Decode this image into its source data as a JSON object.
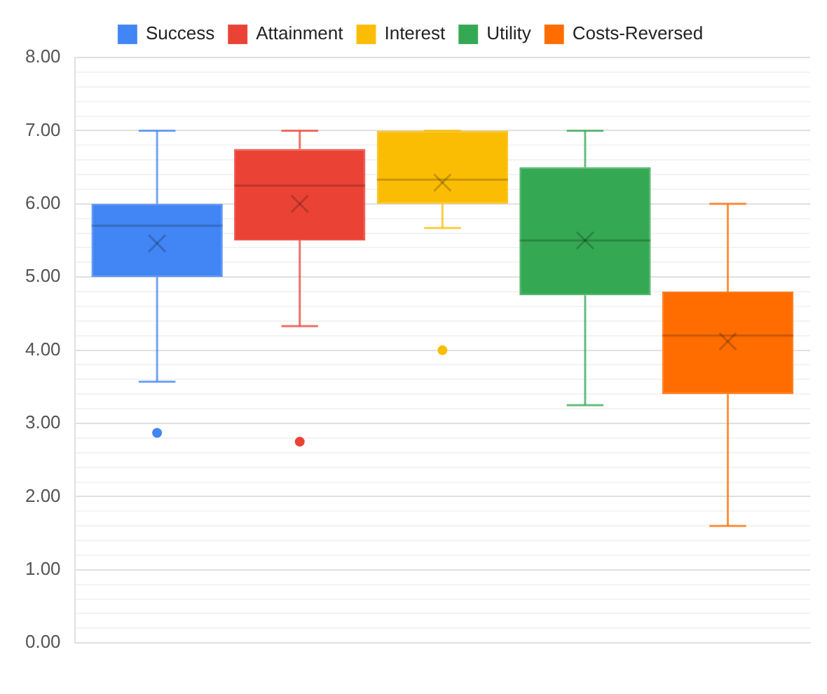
{
  "chart_data": {
    "type": "box",
    "categories": [
      null
    ],
    "legend": "top",
    "grid": true,
    "ylim": [
      0,
      8
    ],
    "yticks": [
      {
        "value": 0,
        "label": "0.00"
      },
      {
        "value": 0.2,
        "label": null
      },
      {
        "value": 0.4,
        "label": null
      },
      {
        "value": 0.6,
        "label": null
      },
      {
        "value": 0.8,
        "label": null
      },
      {
        "value": 1,
        "label": "1.00"
      },
      {
        "value": 1.2,
        "label": null
      },
      {
        "value": 1.4,
        "label": null
      },
      {
        "value": 1.6,
        "label": null
      },
      {
        "value": 1.8,
        "label": null
      },
      {
        "value": 2,
        "label": "2.00"
      },
      {
        "value": 2.2,
        "label": null
      },
      {
        "value": 2.4,
        "label": null
      },
      {
        "value": 2.6,
        "label": null
      },
      {
        "value": 2.8,
        "label": null
      },
      {
        "value": 3,
        "label": "3.00"
      },
      {
        "value": 3.2,
        "label": null
      },
      {
        "value": 3.4,
        "label": null
      },
      {
        "value": 3.6,
        "label": null
      },
      {
        "value": 3.8,
        "label": null
      },
      {
        "value": 4,
        "label": "4.00"
      },
      {
        "value": 4.2,
        "label": null
      },
      {
        "value": 4.4,
        "label": null
      },
      {
        "value": 4.6,
        "label": null
      },
      {
        "value": 4.8,
        "label": null
      },
      {
        "value": 5,
        "label": "5.00"
      },
      {
        "value": 5.2,
        "label": null
      },
      {
        "value": 5.4,
        "label": null
      },
      {
        "value": 5.6,
        "label": null
      },
      {
        "value": 5.8,
        "label": null
      },
      {
        "value": 6,
        "label": "6.00"
      },
      {
        "value": 6.2,
        "label": null
      },
      {
        "value": 6.4,
        "label": null
      },
      {
        "value": 6.6,
        "label": null
      },
      {
        "value": 6.8,
        "label": null
      },
      {
        "value": 7,
        "label": "7.00"
      },
      {
        "value": 7.2,
        "label": null
      },
      {
        "value": 7.4,
        "label": null
      },
      {
        "value": 7.6,
        "label": null
      },
      {
        "value": 7.8,
        "label": null
      },
      {
        "value": 8,
        "label": "8.00"
      }
    ],
    "series": [
      {
        "name": "Success",
        "color": "#4285f4",
        "boxes": [
          {
            "low": 3.57,
            "q1": 5.0,
            "median": 5.7,
            "q3": 6.0,
            "high": 7.0,
            "mean": 5.46,
            "outliers": [
              2.87
            ]
          }
        ]
      },
      {
        "name": "Attainment",
        "color": "#ea4335",
        "boxes": [
          {
            "low": 4.33,
            "q1": 5.5,
            "median": 6.25,
            "q3": 6.75,
            "high": 7.0,
            "mean": 6.0,
            "outliers": [
              2.75
            ]
          }
        ]
      },
      {
        "name": "Interest",
        "color": "#fbbc04",
        "boxes": [
          {
            "low": 5.67,
            "q1": 6.0,
            "median": 6.33,
            "q3": 7.0,
            "high": 7.0,
            "mean": 6.29,
            "outliers": [
              4.0
            ]
          }
        ]
      },
      {
        "name": "Utility",
        "color": "#34a853",
        "boxes": [
          {
            "low": 3.25,
            "q1": 4.75,
            "median": 5.5,
            "q3": 6.5,
            "high": 7.0,
            "mean": 5.5
          }
        ]
      },
      {
        "name": "Costs-Reversed",
        "color": "#ff6d01",
        "boxes": [
          {
            "low": 1.6,
            "q1": 3.4,
            "median": 4.2,
            "q3": 4.8,
            "high": 6.0,
            "mean": 4.12
          }
        ]
      }
    ]
  }
}
